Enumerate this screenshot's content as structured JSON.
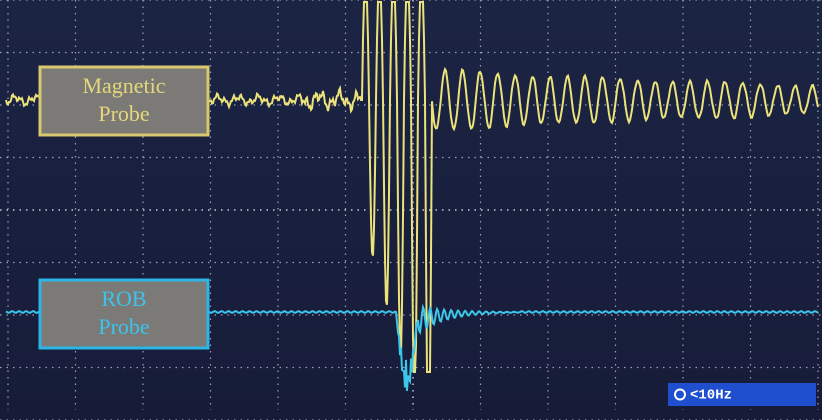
{
  "labels": {
    "magnetic": [
      "Magnetic",
      "Probe"
    ],
    "rob": [
      "ROB",
      "Probe"
    ]
  },
  "status": "<10Hz"
}
